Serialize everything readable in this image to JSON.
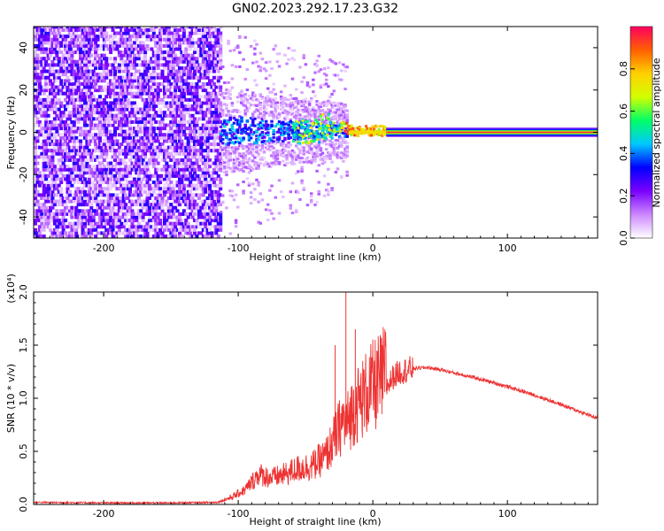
{
  "figure": {
    "title": "GN02.2023.292.17.23.G32"
  },
  "chart_data": [
    {
      "type": "heatmap",
      "xlabel": "Height of straight line (km)",
      "ylabel": "Frequency (Hz)",
      "xlim": [
        -252,
        167
      ],
      "ylim": [
        -50,
        50
      ],
      "xticks": [
        -200,
        -100,
        0,
        100
      ],
      "yticks": [
        -40,
        -20,
        0,
        20,
        40
      ],
      "colorbar": {
        "label": "Normalized spectral amplitude",
        "range": [
          0,
          1
        ],
        "ticks": [
          "0.0",
          "0.2",
          "0.4",
          "0.6",
          "0.8"
        ],
        "colors": [
          "#ffffff",
          "#cc88ff",
          "#7a00ff",
          "#0000ff",
          "#00c8ff",
          "#00ff66",
          "#d2ff00",
          "#ffd000",
          "#ff6000",
          "#ff0060"
        ]
      },
      "regions": [
        {
          "x": [
            -252,
            -114
          ],
          "freq": [
            -50,
            50
          ],
          "amplitude": [
            0.05,
            0.25
          ],
          "description": "noise"
        },
        {
          "x": [
            -114,
            -30
          ],
          "freq": [
            -12,
            10
          ],
          "amplitude": [
            0.2,
            0.5
          ]
        },
        {
          "x": [
            -30,
            10
          ],
          "freq": [
            -3,
            3
          ],
          "amplitude": [
            0.5,
            0.9
          ]
        },
        {
          "x": [
            10,
            167
          ],
          "freq": [
            -1,
            1
          ],
          "amplitude": [
            0.9,
            1.0
          ]
        }
      ]
    },
    {
      "type": "line",
      "xlabel": "Height of straight line (km)",
      "ylabel": "SNR (10 * v/v)",
      "yscale_label": "(x10⁴)",
      "xlim": [
        -252,
        167
      ],
      "ylim": [
        0,
        2.0
      ],
      "xticks": [
        -200,
        -100,
        0,
        100
      ],
      "yticks": [
        "0.0",
        "0.5",
        "1.0",
        "1.5",
        "2.0"
      ],
      "series": [
        {
          "color": "#ee3333",
          "x": [
            -252,
            -200,
            -150,
            -115,
            -105,
            -95,
            -85,
            -75,
            -65,
            -55,
            -45,
            -35,
            -28,
            -22,
            -20,
            -15,
            -10,
            -5,
            0,
            5,
            10,
            15,
            20,
            30,
            40,
            50,
            60,
            80,
            100,
            120,
            140,
            167
          ],
          "y": [
            0.02,
            0.015,
            0.015,
            0.02,
            0.06,
            0.12,
            0.25,
            0.22,
            0.25,
            0.3,
            0.32,
            0.4,
            0.55,
            0.7,
            0.65,
            0.78,
            0.85,
            0.92,
            0.98,
            1.02,
            1.1,
            1.2,
            1.25,
            1.28,
            1.29,
            1.27,
            1.24,
            1.18,
            1.11,
            1.03,
            0.94,
            0.81
          ]
        }
      ],
      "spikes": [
        {
          "x": -20,
          "y": 2.0
        },
        {
          "x": -13,
          "y": 1.65
        },
        {
          "x": -28,
          "y": 1.5
        }
      ]
    }
  ]
}
